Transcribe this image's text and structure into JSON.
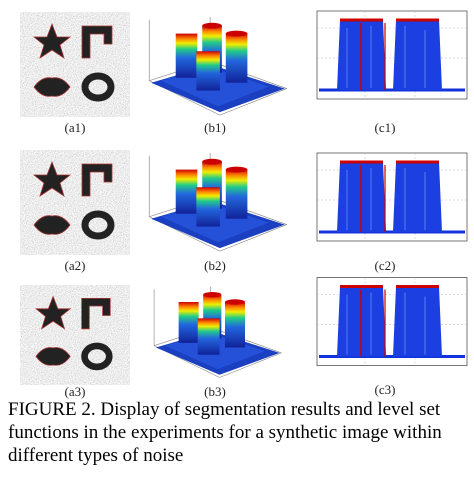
{
  "panels": [
    {
      "label": "(a1)"
    },
    {
      "label": "(b1)"
    },
    {
      "label": "(c1)"
    },
    {
      "label": "(a2)"
    },
    {
      "label": "(b2)"
    },
    {
      "label": "(c2)"
    },
    {
      "label": "(a3)"
    },
    {
      "label": "(b3)"
    },
    {
      "label": "(c3)"
    }
  ],
  "caption": "FIGURE 2. Display of segmentation results and level set functions in the experiments for a synthetic image within different types of noise"
}
